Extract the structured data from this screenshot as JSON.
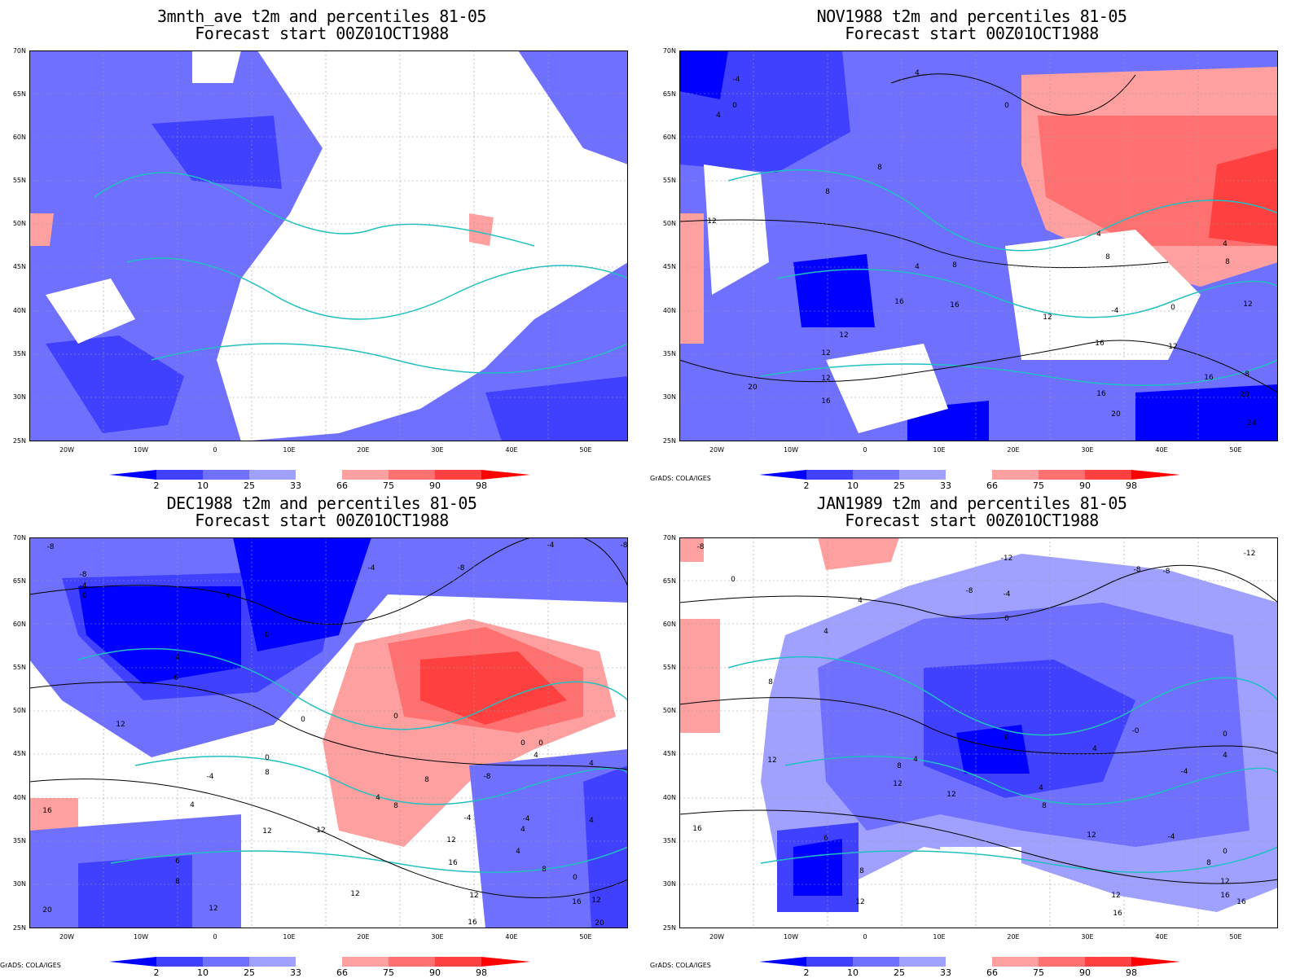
{
  "panels": [
    {
      "title1": "3mnth_ave t2m and percentiles 81-05",
      "title2": "Forecast start 00Z01OCT1988",
      "credit": ""
    },
    {
      "title1": "NOV1988 t2m and percentiles 81-05",
      "title2": "Forecast start 00Z01OCT1988",
      "credit": "GrADS: COLA/IGES"
    },
    {
      "title1": "DEC1988 t2m and percentiles 81-05",
      "title2": "Forecast start 00Z01OCT1988",
      "credit": "GrADS: COLA/IGES"
    },
    {
      "title1": "JAN1989 t2m and percentiles 81-05",
      "title2": "Forecast start 00Z01OCT1988",
      "credit": "GrADS: COLA/IGES"
    }
  ],
  "lat_labels": [
    "70N",
    "65N",
    "60N",
    "55N",
    "50N",
    "45N",
    "40N",
    "35N",
    "30N",
    "25N"
  ],
  "lon_labels": [
    "20W",
    "10W",
    "0",
    "10E",
    "20E",
    "30E",
    "40E",
    "50E"
  ],
  "colorbar": {
    "labels": [
      "2",
      "10",
      "25",
      "33",
      "66",
      "75",
      "90",
      "98"
    ],
    "colors": [
      "#0000ff",
      "#4040ff",
      "#7070ff",
      "#a0a0ff",
      "#ffffff",
      "#ffa0a0",
      "#ff7070",
      "#ff4040",
      "#ff0000"
    ]
  },
  "contour_labels": {
    "nov": [
      "-4",
      "-4",
      "0",
      "4",
      "4",
      "4",
      "0",
      "-4",
      "4",
      "8",
      "8",
      "12",
      "4",
      "8",
      "16",
      "16",
      "12",
      "12",
      "12",
      "12",
      "16",
      "20",
      "16",
      "20",
      "-4",
      "0",
      "8",
      "4",
      "8",
      "12",
      "16",
      "20",
      "24",
      "12",
      "-4",
      "4"
    ],
    "dec": [
      "-8",
      "-4",
      "0",
      "4",
      "0",
      "4",
      "6",
      "12",
      "0",
      "-4",
      "8",
      "-4",
      "4",
      "16",
      "12",
      "8",
      "6",
      "12",
      "20",
      "16",
      "12",
      "16",
      "-8",
      "-4",
      "-4",
      "0",
      "4",
      "8",
      "-8",
      "4",
      "0",
      "4",
      "0",
      "16",
      "12",
      "20",
      "4",
      "8",
      "8"
    ],
    "jan": [
      "-8",
      "0",
      "-12",
      "-8",
      "-4",
      "-8",
      "-8",
      "-4",
      "0",
      "4",
      "4",
      "8",
      "12",
      "0",
      "4",
      "8",
      "12",
      "16",
      "6",
      "8",
      "12",
      "4",
      "8",
      "12",
      "-4",
      "0",
      "4",
      "0",
      "16",
      "12",
      "16",
      "12",
      "8"
    ]
  },
  "percentile_shading_meaning": "percentile category of forecast 2m temperature"
}
